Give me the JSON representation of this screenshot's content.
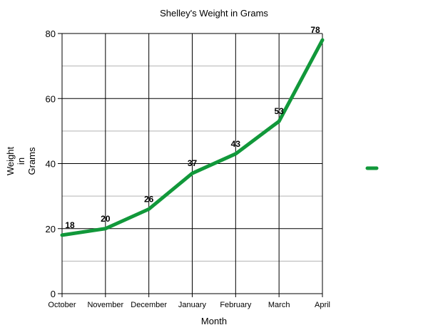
{
  "chart_data": {
    "type": "line",
    "title": "Shelley's Weight in Grams",
    "xlabel": "Month",
    "ylabel_lines": [
      "Weight",
      "in",
      "Grams"
    ],
    "categories": [
      "October",
      "November",
      "December",
      "January",
      "February",
      "March",
      "April"
    ],
    "series": [
      {
        "values": [
          18,
          20,
          26,
          37,
          43,
          53,
          78
        ],
        "color": "#11983a"
      }
    ],
    "ylim": [
      0,
      80
    ],
    "yticks": [
      0,
      20,
      40,
      60,
      80
    ],
    "minor_gridlines": [
      10,
      30,
      50,
      70
    ],
    "grid": true,
    "data_labels": true,
    "legend": {
      "placement": "right",
      "marker": "line",
      "color": "#11983a"
    }
  }
}
